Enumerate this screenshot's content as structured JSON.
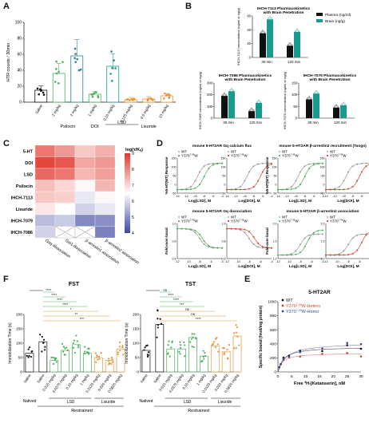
{
  "panels": {
    "a": "A",
    "b": "B",
    "c": "C",
    "d": "D",
    "e": "E",
    "f": "F"
  },
  "colors": {
    "black": "#111111",
    "teal": "#1a9a8c",
    "green": "#4bb05a",
    "red": "#d6452e",
    "orange": "#e8943a",
    "purple": "#6a3f98",
    "grey": "#7a7a7a",
    "blue": "#3b4aa0"
  },
  "panelA": {
    "ylabel": "HTR counts / 30min",
    "yticks": [
      "0",
      "20",
      "40",
      "60",
      "80",
      "100"
    ],
    "ylim": [
      0,
      100
    ],
    "bars": [
      {
        "label": "Saline",
        "value": 15,
        "color": "#111111"
      },
      {
        "label": "2 mg/kg",
        "value": 36,
        "color": "#4bb05a"
      },
      {
        "label": "2 mg/kg",
        "value": 58,
        "color": "#2a7c9a"
      },
      {
        "label": "1 mg/kg",
        "value": 10,
        "color": "#4bb05a"
      },
      {
        "label": "0.15 mg/kg",
        "value": 45,
        "color": "#1a9a8c"
      },
      {
        "label": "0.125 mg/kg",
        "value": 3,
        "color": "#e8943a"
      },
      {
        "label": "0.5 mg/kg",
        "value": 4,
        "color": "#e8943a"
      },
      {
        "label": "10 mg/kg",
        "value": 8,
        "color": "#e8943a"
      }
    ],
    "groups": [
      {
        "label": "Psilocin"
      },
      {
        "label": "DOI"
      },
      {
        "label": "LSD"
      },
      {
        "label": "Lisuride"
      }
    ]
  },
  "panelB": {
    "legend": [
      "Plasma (ng/ml)",
      "Brain (ng/g)"
    ],
    "plots": [
      {
        "title": "IHCH-7113 Pharmacokinetics",
        "title2": "with Brain Penetration",
        "ylabel": "IHCH-7113 concentration (ng/ml or ng/g)",
        "yticks": [
          "0",
          "20",
          "40",
          "60"
        ],
        "ylim": [
          0,
          60
        ],
        "x": [
          "30 min",
          "120 min"
        ],
        "plasma": [
          35,
          17
        ],
        "brain": [
          55,
          37
        ]
      },
      {
        "title": "IHCH-7086 Pharmacokinetics",
        "title2": "with Brain Penetration",
        "ylabel": "IHCH-7086 concentration (ng/ml or ng/g)",
        "yticks": [
          "0",
          "100",
          "200",
          "300"
        ],
        "ylim": [
          0,
          300
        ],
        "x": [
          "30 min",
          "120 min"
        ],
        "plasma": [
          190,
          60
        ],
        "brain": [
          230,
          130
        ]
      },
      {
        "title": "IHCH-7079 Pharmacokinetics",
        "title2": "with Brain Penetration",
        "ylabel": "IHCH-7079 concentration (ng/ml or ng/g)",
        "yticks": [
          "0",
          "50",
          "100",
          "150"
        ],
        "ylim": [
          0,
          150
        ],
        "x": [
          "30 min",
          "120 min"
        ],
        "plasma": [
          80,
          45
        ],
        "brain": [
          105,
          55
        ]
      }
    ]
  },
  "panelC": {
    "rows": [
      "5-HT",
      "DOI",
      "LSD",
      "Psilocin",
      "IHCH-7113",
      "Lisuride",
      "IHCH-7079",
      "IHCH-7086"
    ],
    "cols": [
      "Gαq dissociation",
      "Gαi1 dissociation",
      "β-arrestin1 association",
      "β-arrestin2 association"
    ],
    "colorbar_title": "log(τ/Kₐ)",
    "colorbar_ticks": [
      "9",
      "8",
      "7",
      "6",
      "5",
      "4"
    ],
    "values": [
      [
        8.2,
        7.8,
        7.2,
        7.5
      ],
      [
        8.8,
        8.6,
        7.6,
        7.8
      ],
      [
        8.4,
        8.2,
        7.4,
        7.7
      ],
      [
        7.3,
        7.0,
        6.6,
        7.4
      ],
      [
        7.2,
        7.1,
        6.2,
        6.6
      ],
      [
        6.8,
        6.5,
        5.9,
        6.2
      ],
      [
        5.6,
        5.8,
        4.9,
        5.0
      ],
      [
        5.9,
        null,
        null,
        4.8
      ]
    ]
  },
  "panelD": {
    "plots": [
      {
        "title": "mouse 5-HT2AR  Gq calcium flux",
        "ylabel": "%5-HT(WT) Response",
        "xlabel": "Log[LSD], M",
        "color": "#4bb05a",
        "yticks": [
          "-50",
          "0",
          "50",
          "100",
          "150"
        ],
        "xticks": [
          "-14",
          "-12",
          "-10",
          "-8",
          "-6",
          "-4"
        ]
      },
      {
        "title": "",
        "ylabel": "",
        "xlabel": "Log[DOI], M",
        "color": "#d6452e",
        "yticks": [
          "-50",
          "0",
          "50",
          "100",
          "150"
        ],
        "xticks": [
          "-14",
          "-12",
          "-10",
          "-8",
          "-6",
          "-4"
        ]
      },
      {
        "title": "mouse 5-HT2AR  β-arrestin2 recruitment (Tango)",
        "ylabel": "%5-HT(WT) Response",
        "xlabel": "Log[LSD], M",
        "color": "#4bb05a",
        "yticks": [
          "-50",
          "0",
          "50",
          "100",
          "150"
        ],
        "xticks": [
          "-14",
          "-12",
          "-10",
          "-8",
          "-6",
          "-4"
        ]
      },
      {
        "title": "",
        "ylabel": "",
        "xlabel": "Log[DOI], M",
        "color": "#d6452e",
        "yticks": [
          "-50",
          "0",
          "50",
          "100",
          "150"
        ],
        "xticks": [
          "-14",
          "-12",
          "-10",
          "-8",
          "-6",
          "-4"
        ]
      },
      {
        "title": "mouse 5-HT2AR  Gq dissociation",
        "ylabel": "Fold-over-basal",
        "xlabel": "Log[LSD], M",
        "color": "#4bb05a",
        "yticks": [
          "0.6",
          "0.8",
          "1.0"
        ],
        "xticks": [
          "-12",
          "-10",
          "-8",
          "-6",
          "-4"
        ]
      },
      {
        "title": "",
        "ylabel": "",
        "xlabel": "Log[DOI], M",
        "color": "#d6452e",
        "yticks": [
          "0.6",
          "0.8",
          "1.0"
        ],
        "xticks": [
          "-12",
          "-10",
          "-8",
          "-6",
          "-4"
        ]
      },
      {
        "title": "mouse 5-HT2AR  β-arrestin2 association",
        "ylabel": "Fold-over-basal",
        "xlabel": "Log[LSD], M",
        "color": "#4bb05a",
        "yticks": [
          "1.0",
          "1.5",
          "2.0"
        ],
        "xticks": [
          "-12",
          "-10",
          "-8",
          "-6",
          "-4"
        ]
      },
      {
        "title": "",
        "ylabel": "",
        "xlabel": "Log[DOI], M",
        "color": "#d6452e",
        "yticks": [
          "1.0",
          "1.5",
          "2.0"
        ],
        "xticks": [
          "-12",
          "-10",
          "-8",
          "-6",
          "-4"
        ]
      }
    ],
    "legend_wt": "WT",
    "legend_mut": "Y370",
    "legend_sup": "7.43",
    "legend_w": "W"
  },
  "panelF": {
    "plots": [
      {
        "title": "FST",
        "ylabel": "Immobilization Time (s)",
        "yticks": [
          "0",
          "50",
          "100",
          "150",
          "200"
        ],
        "ylim": [
          0,
          200
        ],
        "values": [
          65,
          105,
          40,
          75,
          95,
          65,
          50,
          40,
          80
        ],
        "sig": [
          "****",
          "****",
          "****",
          "****",
          "*",
          "**",
          "***"
        ]
      },
      {
        "title": "TST",
        "ylabel": "Immobilization Time (s)",
        "yticks": [
          "0",
          "50",
          "100",
          "150",
          "200"
        ],
        "ylim": [
          0,
          200
        ],
        "values": [
          75,
          165,
          80,
          80,
          120,
          55,
          90,
          70,
          125
        ],
        "sig": [
          "ns",
          "****",
          "****",
          "***",
          "ns",
          "ns",
          "****"
        ]
      }
    ],
    "xlabels": [
      "Saline",
      "Saline",
      "0.015 mg/kg",
      "0.0375 mg/kg",
      "0.15 mg/kg",
      "1 mg/kg",
      "0.0125 mg/kg",
      "0.025 mg/kg",
      "0.0625 mg/kg"
    ],
    "lsd": "LSD",
    "lisuride": "Lisuride",
    "restrained": "Restrained",
    "natived": "Natived",
    "barcolors": [
      "#ffffff",
      "#ffffff",
      "#4bb05a",
      "#4bb05a",
      "#4bb05a",
      "#4bb05a",
      "#e8943a",
      "#e8943a",
      "#e8943a"
    ]
  },
  "panelE": {
    "title": "5-HT2AR",
    "ylabel": "Specific bound (fmol/mg protein)",
    "xlabel": "Free ",
    "xlabel_sup": "3",
    "xlabel_rest": "H-[Ketanserin], nM",
    "yticks": [
      "0",
      "200",
      "400",
      "600",
      "800",
      "1000"
    ],
    "xticks": [
      "0",
      "5",
      "10",
      "15",
      "20",
      "25",
      "30"
    ],
    "series": [
      {
        "name": "WT",
        "color": "#111111",
        "bmax": 360,
        "kd": 2.0
      },
      {
        "name": "Y370 7.43W-Hetero",
        "color": "#d6452e",
        "bmax": 270,
        "kd": 1.5
      },
      {
        "name": "Y370 7.43W-Homo",
        "color": "#3b4aa0",
        "bmax": 420,
        "kd": 3.0
      }
    ],
    "legend": [
      "WT",
      "Y370",
      "W-Hetero",
      "Y370",
      "W-Homo"
    ]
  }
}
